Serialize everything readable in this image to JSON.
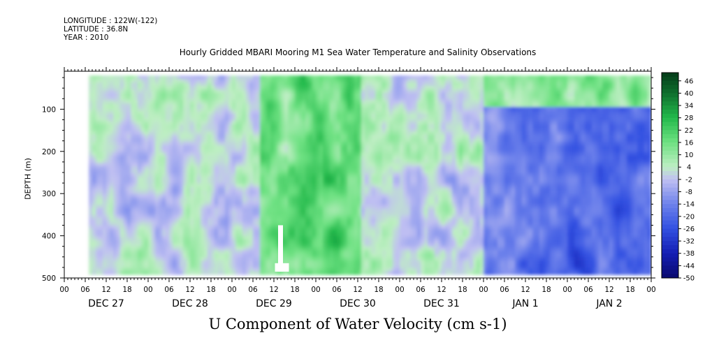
{
  "meta": {
    "longitude": "LONGITUDE : 122W(-122)",
    "latitude": "LATITUDE : 36.8N",
    "year": "YEAR : 2010"
  },
  "chart_data": {
    "type": "heatmap",
    "title": "Hourly Gridded MBARI Mooring M1 Sea Water Temperature and Salinity Observations",
    "xlabel": "U Component of Water Velocity (cm s-1)",
    "ylabel": "DEPTH (m)",
    "x_hour_ticks": [
      "00",
      "06",
      "12",
      "18",
      "00",
      "06",
      "12",
      "18",
      "00",
      "06",
      "12",
      "18",
      "00",
      "06",
      "12",
      "18",
      "00",
      "06",
      "12",
      "18",
      "00",
      "06",
      "12",
      "18",
      "00",
      "06",
      "12",
      "18",
      "00"
    ],
    "x_day_labels": [
      "DEC 27",
      "DEC 28",
      "DEC 29",
      "DEC 30",
      "DEC 31",
      "JAN  1",
      "JAN  2"
    ],
    "y_ticks": [
      100,
      200,
      300,
      400,
      500
    ],
    "ylim": [
      500,
      10
    ],
    "xlim_hours": [
      0,
      168
    ],
    "data_extent": {
      "x_start_hour": 7,
      "y_top_m": 20,
      "y_bottom_m": 485
    },
    "colorbar_labels": [
      46,
      40,
      34,
      28,
      22,
      16,
      10,
      4,
      -2,
      -8,
      -14,
      -20,
      -26,
      -32,
      -38,
      -44,
      -50
    ],
    "colorbar_range": [
      -50,
      50
    ],
    "colors": {
      "dark_green": "#0a4a1f",
      "green": "#22cc55",
      "light_green": "#b8ecc0",
      "light_blue": "#c0c0f0",
      "blue": "#3050e0",
      "dark_blue": "#0a0a7a"
    },
    "field_summary": [
      {
        "hours": [
          7,
          56
        ],
        "pattern": "mixed light green and light blue patches, values roughly -10 to 10"
      },
      {
        "hours": [
          56,
          85
        ],
        "pattern": "mostly green, values roughly 8 to 24, strongest near 75-80 h"
      },
      {
        "hours": [
          85,
          120
        ],
        "pattern": "mixed green and light blue"
      },
      {
        "hours": [
          120,
          168
        ],
        "pattern": "blue below 100 m, values roughly -10 to -30; green near surface above 100 m"
      }
    ]
  }
}
